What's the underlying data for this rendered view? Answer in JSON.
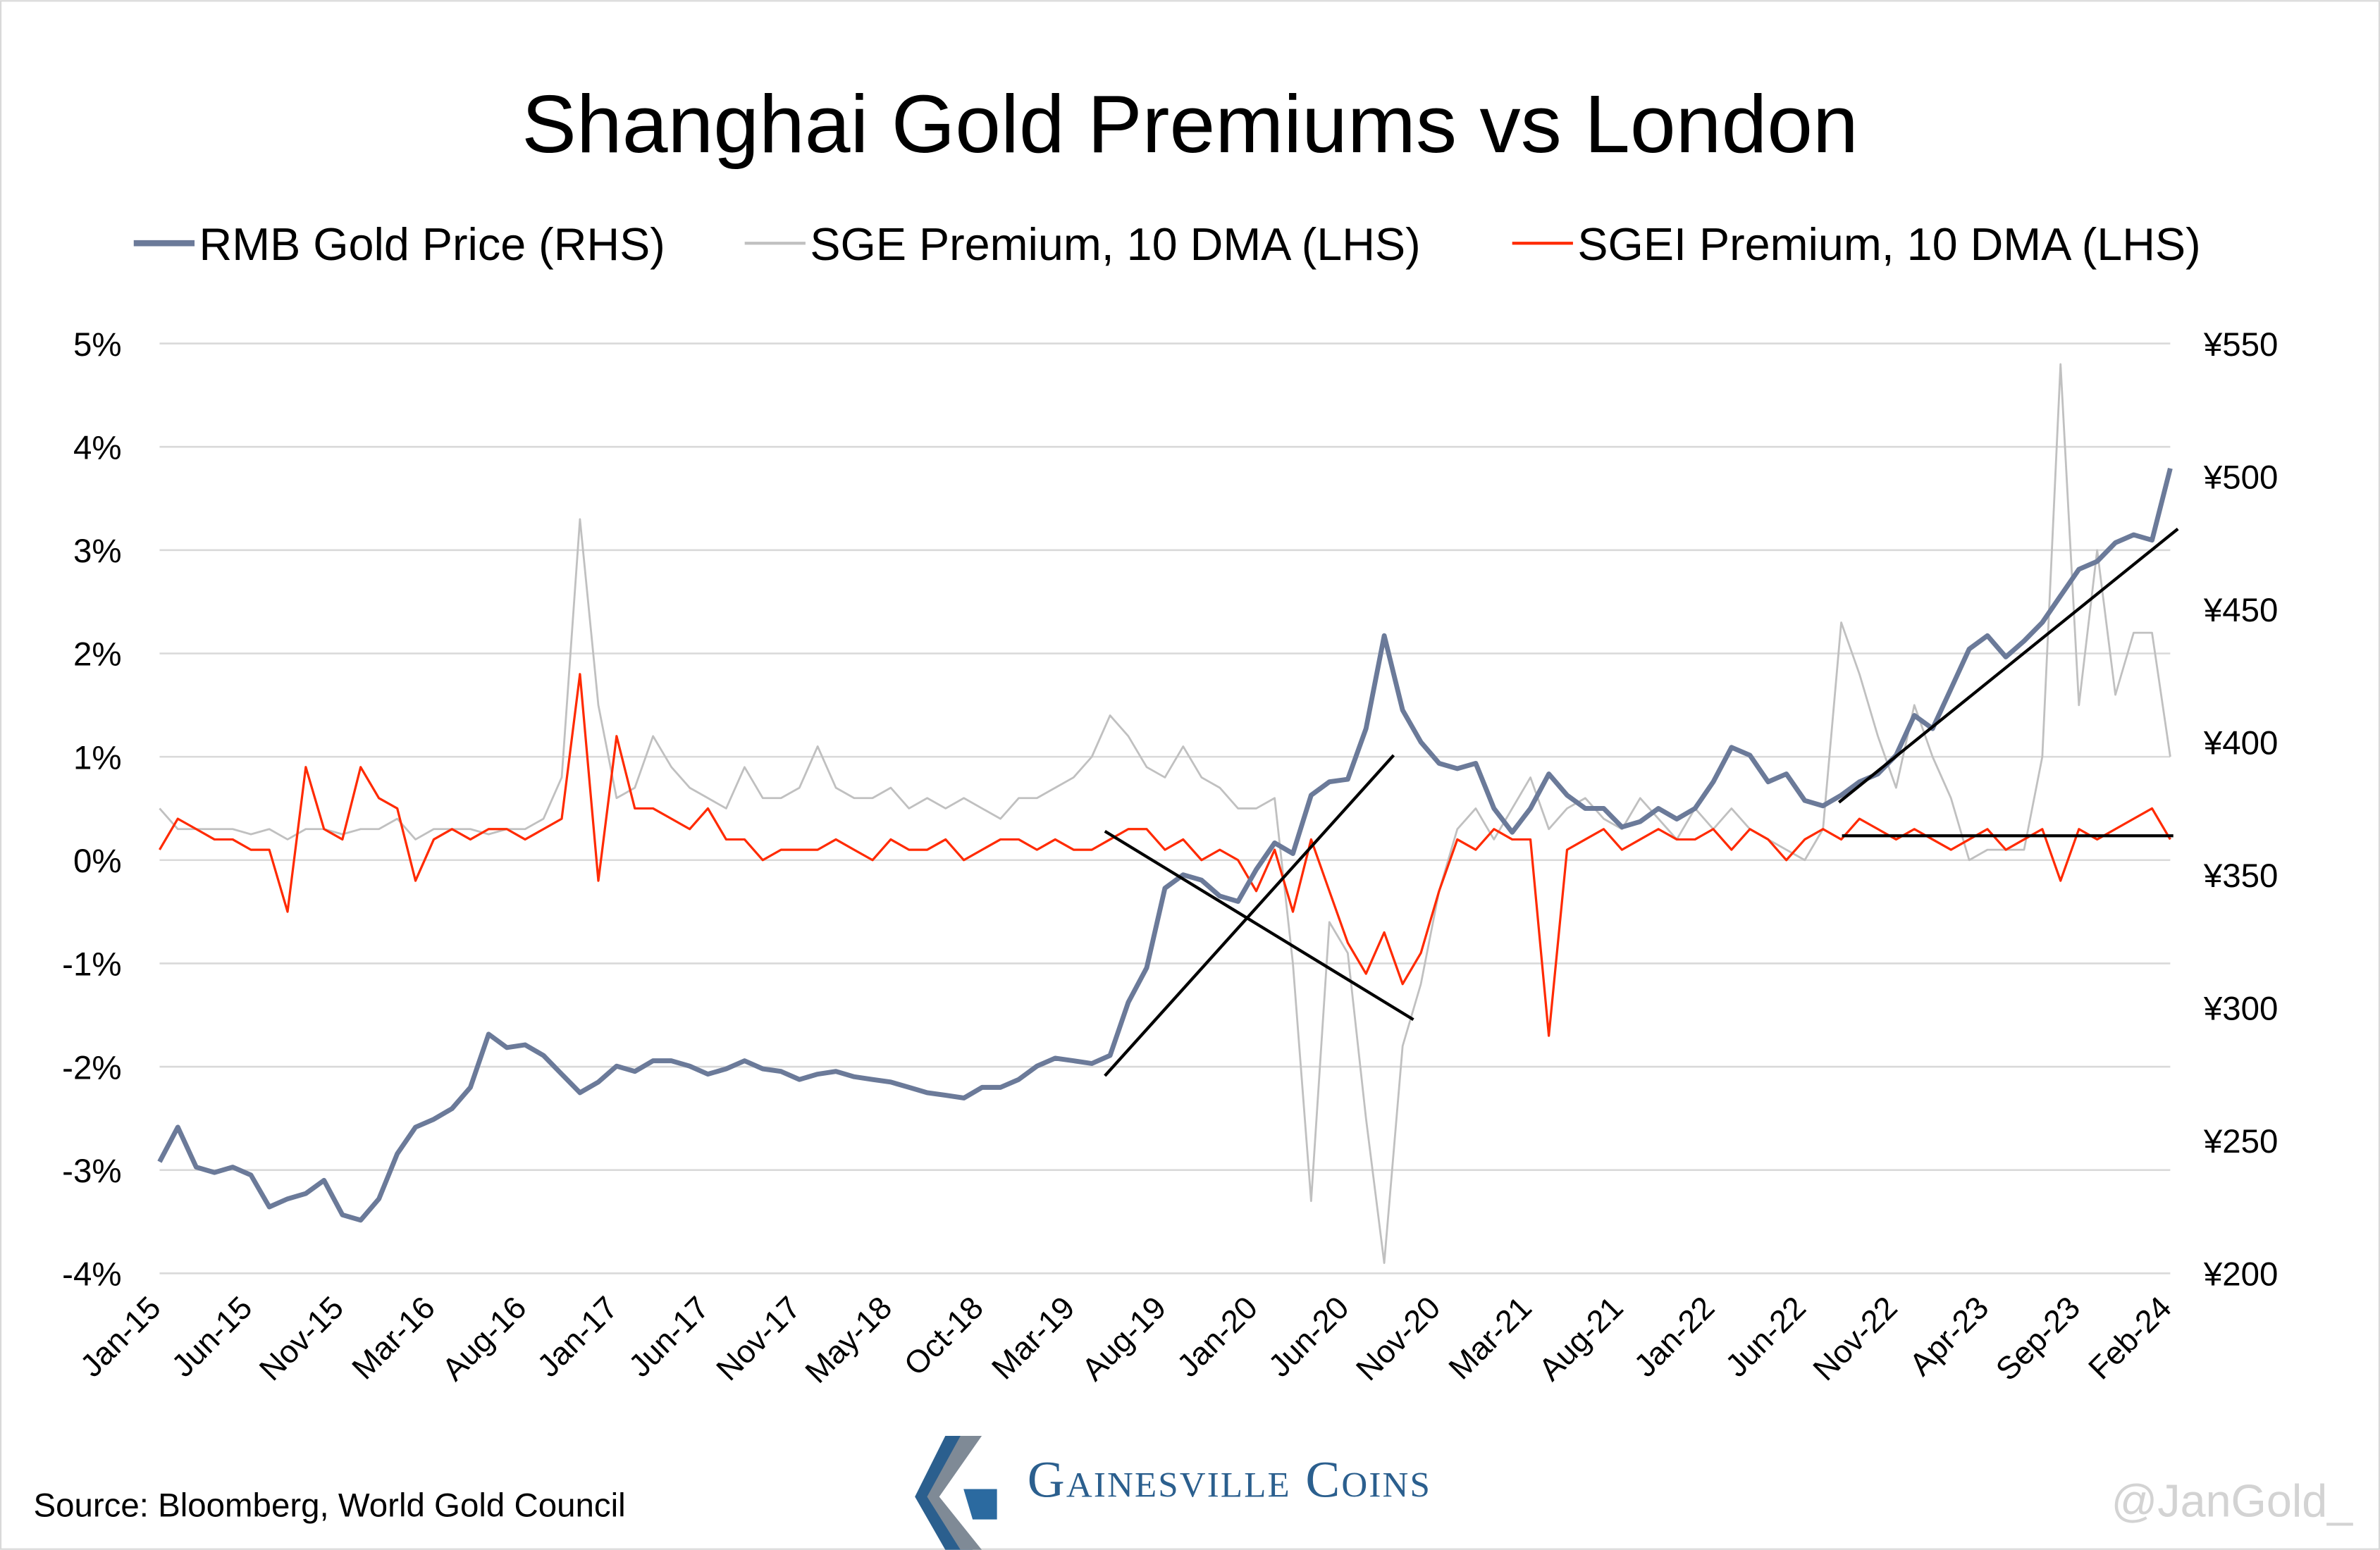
{
  "chart_data": {
    "type": "line",
    "title": "Shanghai Gold Premiums vs London",
    "source": "Source: Bloomberg, World Gold Council",
    "brand": "Gainesville Coins",
    "watermark": "@JanGold_",
    "x_start": "2015-01",
    "x_frequency": "monthly",
    "x_tick_labels": [
      "Jan-15",
      "Jun-15",
      "Nov-15",
      "Mar-16",
      "Aug-16",
      "Jan-17",
      "Jun-17",
      "Nov-17",
      "May-18",
      "Oct-18",
      "Mar-19",
      "Aug-19",
      "Jan-20",
      "Jun-20",
      "Nov-20",
      "Mar-21",
      "Aug-21",
      "Jan-22",
      "Jun-22",
      "Nov-22",
      "Apr-23",
      "Sep-23",
      "Feb-24"
    ],
    "y_left": {
      "label": "",
      "ylim": [
        -4,
        5
      ],
      "ticks": [
        5,
        4,
        3,
        2,
        1,
        0,
        -1,
        -2,
        -3,
        -4
      ],
      "tick_labels": [
        "5%",
        "4%",
        "3%",
        "2%",
        "1%",
        "0%",
        "-1%",
        "-2%",
        "-3%",
        "-4%"
      ]
    },
    "y_right": {
      "label": "",
      "ylim": [
        200,
        550
      ],
      "ticks": [
        550,
        500,
        450,
        400,
        350,
        300,
        250,
        200
      ],
      "tick_labels": [
        "¥550",
        "¥500",
        "¥450",
        "¥400",
        "¥350",
        "¥300",
        "¥250",
        "¥200"
      ]
    },
    "grid": true,
    "legend_placement": "top",
    "series": [
      {
        "name": "RMB Gold Price (RHS)",
        "axis": "right",
        "color": "#6b7a99",
        "values": [
          242,
          255,
          240,
          238,
          240,
          237,
          225,
          228,
          230,
          235,
          222,
          220,
          228,
          245,
          255,
          258,
          262,
          270,
          290,
          285,
          286,
          282,
          275,
          268,
          272,
          278,
          276,
          280,
          280,
          278,
          275,
          277,
          280,
          277,
          276,
          273,
          275,
          276,
          274,
          273,
          272,
          270,
          268,
          267,
          266,
          270,
          270,
          273,
          278,
          281,
          280,
          279,
          282,
          302,
          315,
          345,
          350,
          348,
          342,
          340,
          352,
          362,
          358,
          380,
          385,
          386,
          405,
          440,
          412,
          400,
          392,
          390,
          392,
          375,
          366,
          375,
          388,
          380,
          375,
          375,
          368,
          370,
          375,
          371,
          375,
          385,
          398,
          395,
          385,
          388,
          378,
          376,
          380,
          385,
          388,
          395,
          410,
          405,
          420,
          435,
          440,
          432,
          438,
          445,
          455,
          465,
          468,
          475,
          478,
          476,
          503
        ]
      },
      {
        "name": "SGE Premium, 10 DMA (LHS)",
        "axis": "left",
        "color": "#c0c0c0",
        "values": [
          0.5,
          0.3,
          0.3,
          0.3,
          0.3,
          0.25,
          0.3,
          0.2,
          0.3,
          0.3,
          0.25,
          0.3,
          0.3,
          0.4,
          0.2,
          0.3,
          0.3,
          0.3,
          0.25,
          0.3,
          0.3,
          0.4,
          0.8,
          3.3,
          1.5,
          0.6,
          0.7,
          1.2,
          0.9,
          0.7,
          0.6,
          0.5,
          0.9,
          0.6,
          0.6,
          0.7,
          1.1,
          0.7,
          0.6,
          0.6,
          0.7,
          0.5,
          0.6,
          0.5,
          0.6,
          0.5,
          0.4,
          0.6,
          0.6,
          0.7,
          0.8,
          1.0,
          1.4,
          1.2,
          0.9,
          0.8,
          1.1,
          0.8,
          0.7,
          0.5,
          0.5,
          0.6,
          -1.0,
          -3.3,
          -0.6,
          -0.9,
          -2.5,
          -3.9,
          -1.8,
          -1.2,
          -0.3,
          0.3,
          0.5,
          0.2,
          0.5,
          0.8,
          0.3,
          0.5,
          0.6,
          0.4,
          0.3,
          0.6,
          0.4,
          0.2,
          0.5,
          0.3,
          0.5,
          0.3,
          0.2,
          0.1,
          0.0,
          0.3,
          2.3,
          1.8,
          1.2,
          0.7,
          1.5,
          1.0,
          0.6,
          0.0,
          0.1,
          0.1,
          0.1,
          1.0,
          4.8,
          1.5,
          3.0,
          1.6,
          2.2,
          2.2,
          1.0
        ]
      },
      {
        "name": "SGEI Premium, 10 DMA (LHS)",
        "axis": "left",
        "color": "#ff2a00",
        "values": [
          0.1,
          0.4,
          0.3,
          0.2,
          0.2,
          0.1,
          0.1,
          -0.5,
          0.9,
          0.3,
          0.2,
          0.9,
          0.6,
          0.5,
          -0.2,
          0.2,
          0.3,
          0.2,
          0.3,
          0.3,
          0.2,
          0.3,
          0.4,
          1.8,
          -0.2,
          1.2,
          0.5,
          0.5,
          0.4,
          0.3,
          0.5,
          0.2,
          0.2,
          0.0,
          0.1,
          0.1,
          0.1,
          0.2,
          0.1,
          0.0,
          0.2,
          0.1,
          0.1,
          0.2,
          0.0,
          0.1,
          0.2,
          0.2,
          0.1,
          0.2,
          0.1,
          0.1,
          0.2,
          0.3,
          0.3,
          0.1,
          0.2,
          0.0,
          0.1,
          0.0,
          -0.3,
          0.1,
          -0.5,
          0.2,
          -0.3,
          -0.8,
          -1.1,
          -0.7,
          -1.2,
          -0.9,
          -0.3,
          0.2,
          0.1,
          0.3,
          0.2,
          0.2,
          -1.7,
          0.1,
          0.2,
          0.3,
          0.1,
          0.2,
          0.3,
          0.2,
          0.2,
          0.3,
          0.1,
          0.3,
          0.2,
          0.0,
          0.2,
          0.3,
          0.2,
          0.4,
          0.3,
          0.2,
          0.3,
          0.2,
          0.1,
          0.2,
          0.3,
          0.1,
          0.2,
          0.3,
          -0.2,
          0.3,
          0.2,
          0.3,
          0.4,
          0.5,
          0.2
        ]
      }
    ]
  }
}
